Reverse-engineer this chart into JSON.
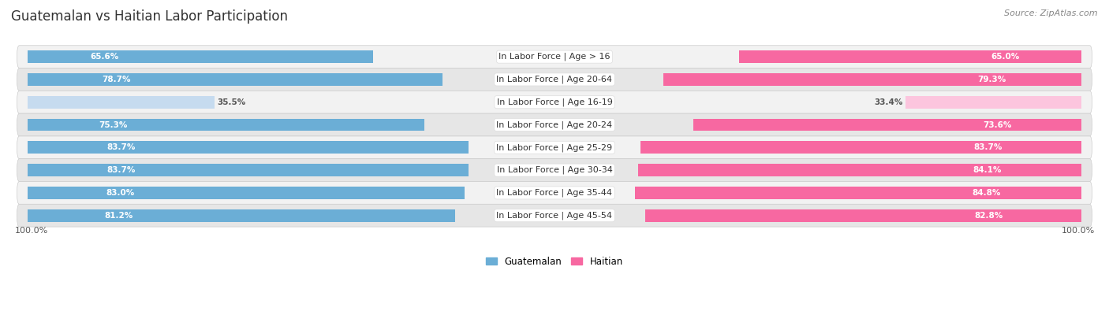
{
  "title": "Guatemalan vs Haitian Labor Participation",
  "source": "Source: ZipAtlas.com",
  "categories": [
    "In Labor Force | Age > 16",
    "In Labor Force | Age 20-64",
    "In Labor Force | Age 16-19",
    "In Labor Force | Age 20-24",
    "In Labor Force | Age 25-29",
    "In Labor Force | Age 30-34",
    "In Labor Force | Age 35-44",
    "In Labor Force | Age 45-54"
  ],
  "guatemalan_values": [
    65.6,
    78.7,
    35.5,
    75.3,
    83.7,
    83.7,
    83.0,
    81.2
  ],
  "haitian_values": [
    65.0,
    79.3,
    33.4,
    73.6,
    83.7,
    84.1,
    84.8,
    82.8
  ],
  "guatemalan_color": "#6baed6",
  "guatemalan_light_color": "#c6dbef",
  "haitian_color": "#f768a1",
  "haitian_light_color": "#fcc5de",
  "max_value": 100.0,
  "bg_color": "#ffffff",
  "row_light_color": "#f5f5f5",
  "row_dark_color": "#e8e8e8",
  "bar_height": 0.55,
  "title_fontsize": 12,
  "label_fontsize": 8,
  "value_fontsize": 7.5,
  "source_fontsize": 8,
  "light_threshold": 50.0
}
